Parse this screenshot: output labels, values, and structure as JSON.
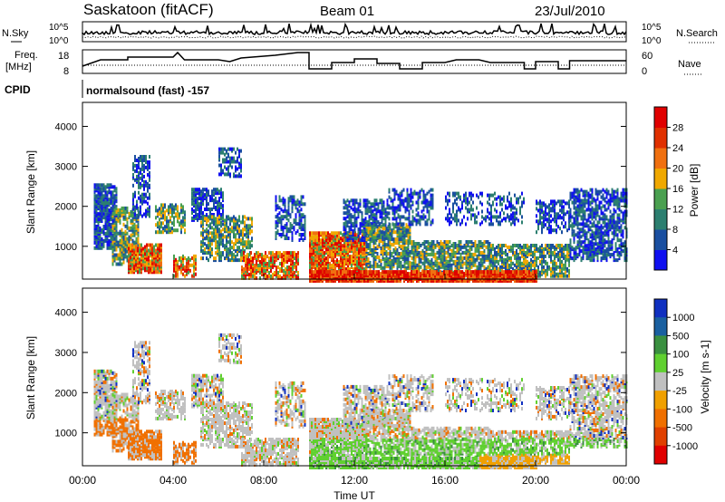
{
  "header": {
    "title": "Saskatoon (fitACF)",
    "beam": "Beam 01",
    "date": "23/Jul/2010"
  },
  "status_panels": {
    "nsky_label": "N.Sky",
    "nsearch_label": "N.Search",
    "noise_ticks_left": [
      "10^5",
      "10^0"
    ],
    "noise_ticks_right": [
      "10^5",
      "10^0"
    ],
    "freq_label_1": "Freq.",
    "freq_label_2": "[MHz]",
    "freq_ticks": [
      "18",
      "8"
    ],
    "nave_label": "Nave",
    "nave_ticks": [
      "60",
      "0"
    ],
    "cpid_label": "CPID",
    "cpid_text": "normalsound (fast) -157"
  },
  "chart_data": [
    {
      "type": "heatmap",
      "name": "power",
      "ylabel": "Slant Range [km]",
      "yticks": [
        1000,
        2000,
        3000,
        4000
      ],
      "ylim": [
        180,
        4600
      ],
      "xlim": [
        0,
        24
      ],
      "colorbar_label": "Power [dB]",
      "colorbar_ticks": [
        "4",
        "8",
        "12",
        "16",
        "20",
        "24",
        "28"
      ],
      "colors": [
        "#1010f0",
        "#1a4fa0",
        "#2c7f70",
        "#4aa050",
        "#f0a800",
        "#f07010",
        "#e03000",
        "#e00000"
      ]
    },
    {
      "type": "heatmap",
      "name": "velocity",
      "ylabel": "Slant Range [km]",
      "yticks": [
        1000,
        2000,
        3000,
        4000
      ],
      "ylim": [
        180,
        4600
      ],
      "xlim": [
        0,
        24
      ],
      "colorbar_label": "Velocity [m s-1]",
      "colorbar_ticks": [
        "1000",
        "500",
        "100",
        "25",
        "-25",
        "-100",
        "-500",
        "-1000"
      ],
      "colors": [
        "#1030c0",
        "#1a60a0",
        "#3a9040",
        "#60d030",
        "#c0c0c0",
        "#f0a000",
        "#f07000",
        "#e04000",
        "#e00000"
      ]
    }
  ],
  "xaxis": {
    "label": "Time UT",
    "ticks": [
      "00:00",
      "04:00",
      "08:00",
      "12:00",
      "16:00",
      "20:00",
      "00:00"
    ]
  }
}
